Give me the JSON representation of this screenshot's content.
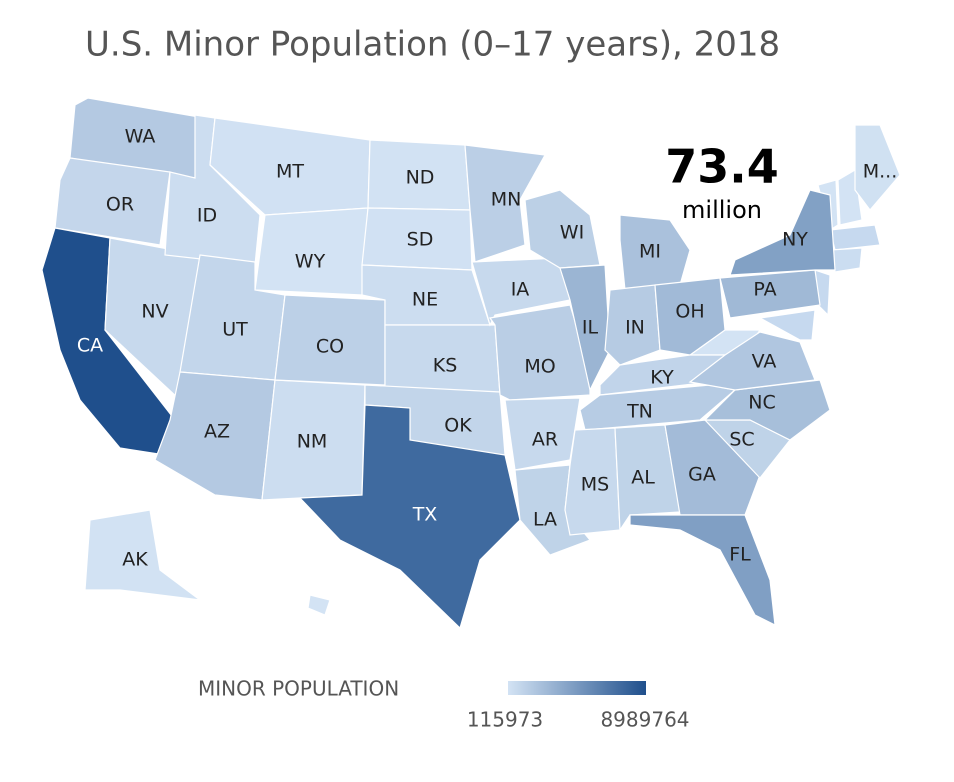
{
  "title": "U.S. Minor Population (0–17 years), 2018",
  "total": {
    "value": 73.4,
    "unit": "million"
  },
  "legend": {
    "title": "MINOR POPULATION",
    "min": 115973,
    "max": 8989764,
    "color_min": "#d3e3f4",
    "color_max": "#1f4f8c"
  },
  "states": [
    {
      "label": "WA",
      "value": 1650000
    },
    {
      "label": "OR",
      "value": 870000
    },
    {
      "label": "CA",
      "value": 8989764
    },
    {
      "label": "NV",
      "value": 710000
    },
    {
      "label": "ID",
      "value": 450000
    },
    {
      "label": "MT",
      "value": 230000
    },
    {
      "label": "WY",
      "value": 135000
    },
    {
      "label": "UT",
      "value": 920000
    },
    {
      "label": "AZ",
      "value": 1650000
    },
    {
      "label": "NM",
      "value": 480000
    },
    {
      "label": "CO",
      "value": 1250000
    },
    {
      "label": "ND",
      "value": 180000
    },
    {
      "label": "SD",
      "value": 215000
    },
    {
      "label": "NE",
      "value": 480000
    },
    {
      "label": "KS",
      "value": 710000
    },
    {
      "label": "OK",
      "value": 960000
    },
    {
      "label": "TX",
      "value": 7400000
    },
    {
      "label": "MN",
      "value": 1300000
    },
    {
      "label": "IA",
      "value": 730000
    },
    {
      "label": "MO",
      "value": 1370000
    },
    {
      "label": "AR",
      "value": 700000
    },
    {
      "label": "LA",
      "value": 1100000
    },
    {
      "label": "WI",
      "value": 1270000
    },
    {
      "label": "IL",
      "value": 2900000
    },
    {
      "label": "MI",
      "value": 2150000
    },
    {
      "label": "IN",
      "value": 1570000
    },
    {
      "label": "OH",
      "value": 2600000
    },
    {
      "label": "KY",
      "value": 1000000
    },
    {
      "label": "TN",
      "value": 1500000
    },
    {
      "label": "MS",
      "value": 710000
    },
    {
      "label": "AL",
      "value": 1100000
    },
    {
      "label": "GA",
      "value": 2500000
    },
    {
      "label": "FL",
      "value": 4200000
    },
    {
      "label": "SC",
      "value": 1100000
    },
    {
      "label": "NC",
      "value": 2300000
    },
    {
      "label": "VA",
      "value": 1850000
    },
    {
      "label": "PA",
      "value": 2650000
    },
    {
      "label": "NY",
      "value": 4100000
    },
    {
      "label": "M...",
      "value": 250000
    },
    {
      "label": "AK",
      "value": 185000
    }
  ]
}
